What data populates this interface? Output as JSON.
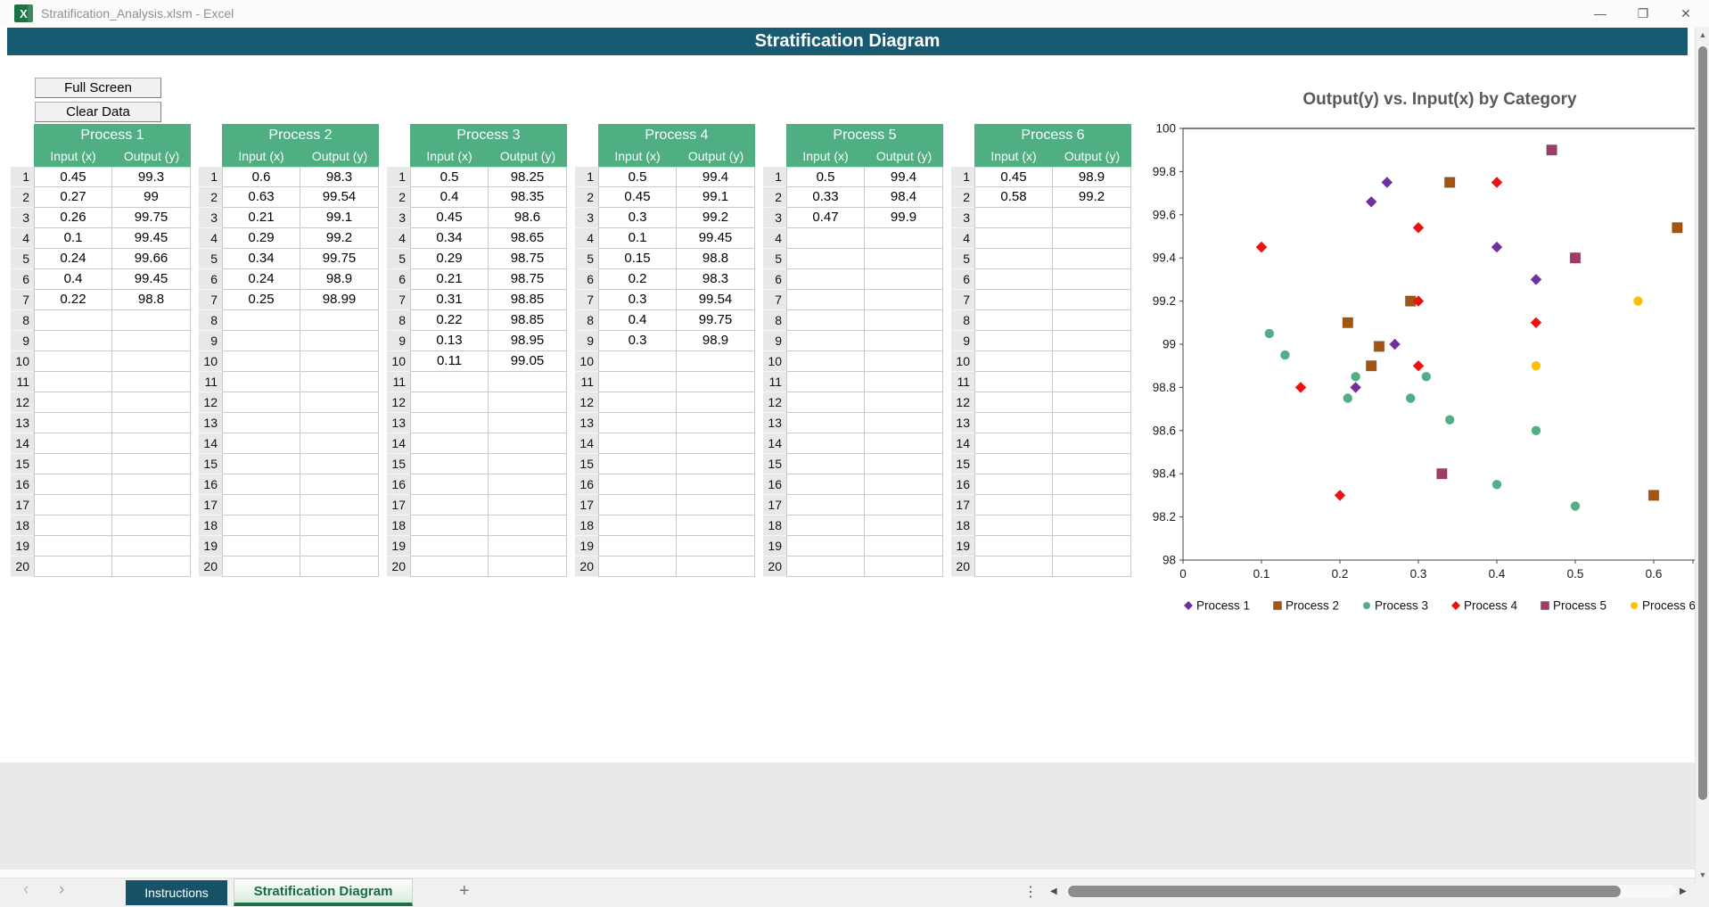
{
  "window": {
    "title": "Stratification_Analysis.xlsm - Excel"
  },
  "icons": {
    "app": "X",
    "minimize": "—",
    "restore": "❐",
    "close": "✕",
    "nav_prev": "‹",
    "nav_next": "›",
    "add_sheet": "+",
    "drag_dots": "⋮",
    "hscroll_left": "◀",
    "hscroll_right": "▶",
    "vscroll_up": "▲",
    "vscroll_down": "▼"
  },
  "banner": {
    "title": "Stratification Diagram",
    "bg_color": "#185A72"
  },
  "toolbar": {
    "full_screen_label": "Full Screen",
    "clear_data_label": "Clear Data"
  },
  "tables": {
    "row_count": 20,
    "input_header": "Input (x)",
    "output_header": "Output (y)",
    "header_bg": "#4FAE82",
    "processes": [
      {
        "name": "Process 1",
        "rows": [
          [
            0.45,
            99.3
          ],
          [
            0.27,
            99
          ],
          [
            0.26,
            99.75
          ],
          [
            0.1,
            99.45
          ],
          [
            0.24,
            99.66
          ],
          [
            0.4,
            99.45
          ],
          [
            0.22,
            98.8
          ]
        ]
      },
      {
        "name": "Process 2",
        "rows": [
          [
            0.6,
            98.3
          ],
          [
            0.63,
            99.54
          ],
          [
            0.21,
            99.1
          ],
          [
            0.29,
            99.2
          ],
          [
            0.34,
            99.75
          ],
          [
            0.24,
            98.9
          ],
          [
            0.25,
            98.99
          ]
        ]
      },
      {
        "name": "Process 3",
        "rows": [
          [
            0.5,
            98.25
          ],
          [
            0.4,
            98.35
          ],
          [
            0.45,
            98.6
          ],
          [
            0.34,
            98.65
          ],
          [
            0.29,
            98.75
          ],
          [
            0.21,
            98.75
          ],
          [
            0.31,
            98.85
          ],
          [
            0.22,
            98.85
          ],
          [
            0.13,
            98.95
          ],
          [
            0.11,
            99.05
          ]
        ]
      },
      {
        "name": "Process 4",
        "rows": [
          [
            0.5,
            99.4
          ],
          [
            0.45,
            99.1
          ],
          [
            0.3,
            99.2
          ],
          [
            0.1,
            99.45
          ],
          [
            0.15,
            98.8
          ],
          [
            0.2,
            98.3
          ],
          [
            0.3,
            99.54
          ],
          [
            0.4,
            99.75
          ],
          [
            0.3,
            98.9
          ]
        ]
      },
      {
        "name": "Process 5",
        "rows": [
          [
            0.5,
            99.4
          ],
          [
            0.33,
            98.4
          ],
          [
            0.47,
            99.9
          ]
        ]
      },
      {
        "name": "Process 6",
        "rows": [
          [
            0.45,
            98.9
          ],
          [
            0.58,
            99.2
          ]
        ]
      }
    ]
  },
  "chart_data": {
    "type": "scatter",
    "title": "Output(y) vs. Input(x) by Category",
    "xlabel": "",
    "ylabel": "",
    "xlim": [
      0,
      0.65
    ],
    "ylim": [
      98,
      100
    ],
    "x_tick_labels": [
      "0",
      "0.1",
      "0.2",
      "0.3",
      "0.4",
      "0.5",
      "0.6"
    ],
    "y_tick_labels": [
      "98",
      "98.2",
      "98.4",
      "98.6",
      "98.8",
      "99",
      "99.2",
      "99.4",
      "99.6",
      "99.8",
      "100"
    ],
    "grid": "top-boundary-line-only",
    "legend_position": "bottom",
    "series": [
      {
        "name": "Process 1",
        "marker": "diamond",
        "color": "#7030A0",
        "points": [
          [
            0.45,
            99.3
          ],
          [
            0.27,
            99
          ],
          [
            0.26,
            99.75
          ],
          [
            0.1,
            99.45
          ],
          [
            0.24,
            99.66
          ],
          [
            0.4,
            99.45
          ],
          [
            0.22,
            98.8
          ]
        ]
      },
      {
        "name": "Process 2",
        "marker": "square",
        "color": "#A3560F",
        "points": [
          [
            0.6,
            98.3
          ],
          [
            0.63,
            99.54
          ],
          [
            0.21,
            99.1
          ],
          [
            0.29,
            99.2
          ],
          [
            0.34,
            99.75
          ],
          [
            0.24,
            98.9
          ],
          [
            0.25,
            98.99
          ]
        ]
      },
      {
        "name": "Process 3",
        "marker": "circle",
        "color": "#53AE85",
        "points": [
          [
            0.5,
            98.25
          ],
          [
            0.4,
            98.35
          ],
          [
            0.45,
            98.6
          ],
          [
            0.34,
            98.65
          ],
          [
            0.29,
            98.75
          ],
          [
            0.21,
            98.75
          ],
          [
            0.31,
            98.85
          ],
          [
            0.22,
            98.85
          ],
          [
            0.13,
            98.95
          ],
          [
            0.11,
            99.05
          ]
        ]
      },
      {
        "name": "Process 4",
        "marker": "diamond",
        "color": "#ED1111",
        "points": [
          [
            0.5,
            99.4
          ],
          [
            0.45,
            99.1
          ],
          [
            0.3,
            99.2
          ],
          [
            0.1,
            99.45
          ],
          [
            0.15,
            98.8
          ],
          [
            0.2,
            98.3
          ],
          [
            0.3,
            99.54
          ],
          [
            0.4,
            99.75
          ],
          [
            0.3,
            98.9
          ]
        ]
      },
      {
        "name": "Process 5",
        "marker": "square",
        "color": "#A23B68",
        "points": [
          [
            0.5,
            99.4
          ],
          [
            0.33,
            98.4
          ],
          [
            0.47,
            99.9
          ]
        ]
      },
      {
        "name": "Process 6",
        "marker": "circle",
        "color": "#FCC004",
        "points": [
          [
            0.45,
            98.9
          ],
          [
            0.58,
            99.2
          ]
        ]
      }
    ]
  },
  "sheet_tabs": {
    "tabs": [
      {
        "label": "Instructions",
        "active": false
      },
      {
        "label": "Stratification Diagram",
        "active": true
      }
    ]
  }
}
